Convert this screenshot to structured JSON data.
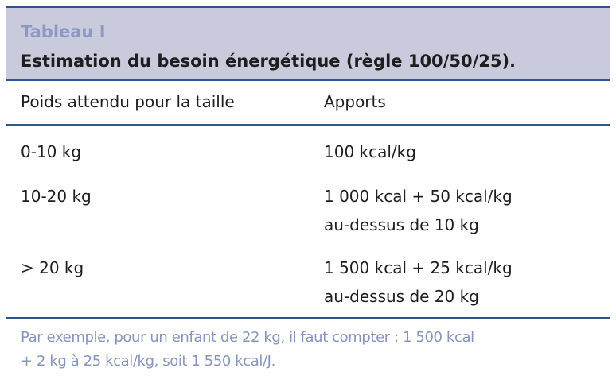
{
  "table": {
    "label": "Tableau I",
    "title": "Estimation du besoin énergétique (règle 100/50/25).",
    "columns": [
      "Poids attendu pour la taille",
      "Apports"
    ],
    "rows": [
      {
        "weight": "0-10 kg",
        "intake": [
          "100 kcal/kg"
        ]
      },
      {
        "weight": "10-20 kg",
        "intake": [
          "1 000 kcal + 50 kcal/kg",
          "au-dessus de 10 kg"
        ]
      },
      {
        "weight": "> 20 kg",
        "intake": [
          "1 500 kcal + 25 kcal/kg",
          "au-dessus de 20 kg"
        ]
      }
    ],
    "note": [
      "Par exemple, pour un enfant de 22 kg, il faut compter : 1 500 kcal",
      "+ 2 kg à 25 kcal/kg, soit 1 550 kcal/J."
    ]
  },
  "colors": {
    "rule": "#2f5590",
    "header_bg": "#c9cbdc",
    "label": "#8c9ac3",
    "note": "#8794bd"
  }
}
